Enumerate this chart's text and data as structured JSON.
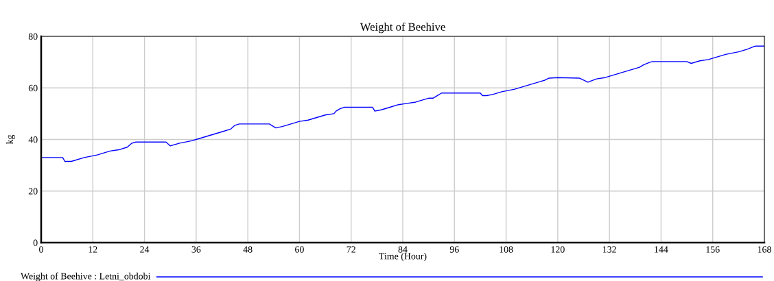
{
  "chart_data": {
    "type": "line",
    "title": "Weight of Beehive",
    "xlabel": "Time (Hour)",
    "ylabel": "kg",
    "x": [
      0,
      5,
      5.5,
      7,
      10,
      13,
      16,
      18,
      20,
      21,
      22,
      29,
      30,
      32,
      35,
      36,
      38,
      40,
      42,
      44,
      45,
      46,
      53,
      54.5,
      56,
      58,
      60,
      62,
      64,
      66,
      68,
      68.5,
      69.5,
      70.5,
      77,
      77.5,
      79,
      81,
      83,
      85,
      87,
      89,
      90,
      91,
      92,
      93,
      102,
      102.5,
      103.5,
      105,
      107,
      110,
      112,
      114,
      116,
      117,
      118,
      120,
      125,
      127,
      129,
      131,
      133,
      135,
      137,
      139,
      140,
      141.5,
      142,
      150,
      151,
      153,
      155,
      157,
      159,
      162,
      164,
      165.5,
      166,
      168
    ],
    "series": [
      {
        "name": "Weight of Beehive : Letni_obdobi",
        "color": "#0000ff",
        "values": [
          33,
          33,
          31.5,
          31.5,
          33,
          34,
          35.5,
          36,
          37,
          38.5,
          39,
          39,
          37.5,
          38.5,
          39.5,
          40,
          41,
          42,
          43,
          44,
          45.5,
          46,
          46,
          44.5,
          45,
          46,
          47,
          47.5,
          48.5,
          49.5,
          50,
          51,
          52,
          52.5,
          52.5,
          51,
          51.5,
          52.5,
          53.5,
          54,
          54.5,
          55.5,
          56,
          56,
          57,
          58,
          58,
          57,
          57,
          57.5,
          58.5,
          59.5,
          60.5,
          61.5,
          62.5,
          63,
          63.8,
          64,
          63.8,
          62.2,
          63.5,
          64,
          65,
          66,
          67,
          68,
          69,
          70,
          70.2,
          70.2,
          69.5,
          70.5,
          71,
          72,
          73,
          74,
          75,
          76,
          76.2,
          76.2
        ]
      }
    ],
    "xlim": [
      0,
      168
    ],
    "xticks": [
      0,
      12,
      24,
      36,
      48,
      60,
      72,
      84,
      96,
      108,
      120,
      132,
      144,
      156,
      168
    ],
    "ylim": [
      0,
      80
    ],
    "yticks": [
      0,
      20,
      40,
      60,
      80
    ],
    "grid": true,
    "legend": "bottom left",
    "marker": "none",
    "line_style": "solid"
  }
}
